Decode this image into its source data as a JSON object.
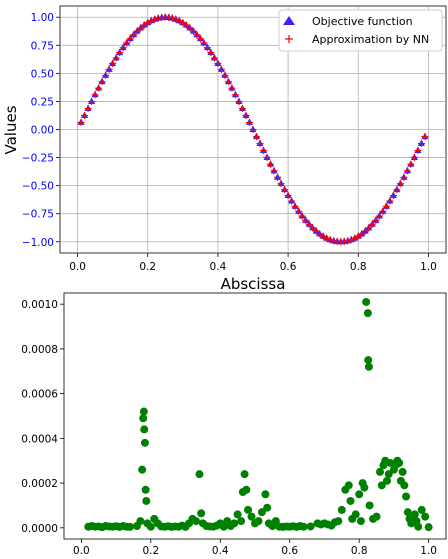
{
  "chart_data": [
    {
      "type": "scatter",
      "xlabel": "Abscissa",
      "ylabel": "Values",
      "xlim": [
        -0.05,
        1.05
      ],
      "ylim": [
        -1.1,
        1.1
      ],
      "grid": true,
      "legend_position": "top-right",
      "x_ticks": [
        0.0,
        0.2,
        0.4,
        0.6,
        0.8,
        1.0
      ],
      "x_tick_labels": [
        "0.0",
        "0.2",
        "0.4",
        "0.6",
        "0.8",
        "1.0"
      ],
      "y_ticks": [
        -1.0,
        -0.75,
        -0.5,
        -0.25,
        0.0,
        0.25,
        0.5,
        0.75,
        1.0
      ],
      "y_tick_labels": [
        "−1.00",
        "−0.75",
        "−0.50",
        "−0.25",
        "0.00",
        "0.25",
        "0.50",
        "0.75",
        "1.00"
      ],
      "y_tick_color": "#0000ff",
      "series": [
        {
          "name": "Objective function",
          "marker": "triangle",
          "color": "#3a22ff"
        },
        {
          "name": "Approximation by NN",
          "marker": "plus",
          "color": "#ff0000"
        }
      ],
      "x": [
        0.01,
        0.02,
        0.03,
        0.04,
        0.05,
        0.06,
        0.07,
        0.08,
        0.09,
        0.1,
        0.11,
        0.12,
        0.13,
        0.14,
        0.15,
        0.16,
        0.17,
        0.18,
        0.19,
        0.2,
        0.21,
        0.22,
        0.23,
        0.24,
        0.25,
        0.26,
        0.27,
        0.28,
        0.29,
        0.3,
        0.31,
        0.32,
        0.33,
        0.34,
        0.35,
        0.36,
        0.37,
        0.38,
        0.39,
        0.4,
        0.41,
        0.42,
        0.43,
        0.44,
        0.45,
        0.46,
        0.47,
        0.48,
        0.49,
        0.5,
        0.51,
        0.52,
        0.53,
        0.54,
        0.55,
        0.56,
        0.57,
        0.58,
        0.59,
        0.6,
        0.61,
        0.62,
        0.63,
        0.64,
        0.65,
        0.66,
        0.67,
        0.68,
        0.69,
        0.7,
        0.71,
        0.72,
        0.73,
        0.74,
        0.75,
        0.76,
        0.77,
        0.78,
        0.79,
        0.8,
        0.81,
        0.82,
        0.83,
        0.84,
        0.85,
        0.86,
        0.87,
        0.88,
        0.89,
        0.9,
        0.91,
        0.92,
        0.93,
        0.94,
        0.95,
        0.96,
        0.97,
        0.98,
        0.99
      ],
      "y": [
        0.063,
        0.125,
        0.187,
        0.249,
        0.309,
        0.368,
        0.426,
        0.482,
        0.536,
        0.588,
        0.637,
        0.685,
        0.729,
        0.771,
        0.809,
        0.844,
        0.876,
        0.905,
        0.93,
        0.951,
        0.969,
        0.982,
        0.992,
        0.998,
        1.0,
        0.998,
        0.992,
        0.982,
        0.969,
        0.951,
        0.93,
        0.905,
        0.876,
        0.844,
        0.809,
        0.771,
        0.729,
        0.685,
        0.637,
        0.588,
        0.536,
        0.482,
        0.426,
        0.368,
        0.309,
        0.249,
        0.187,
        0.125,
        0.063,
        0.0,
        -0.063,
        -0.125,
        -0.187,
        -0.249,
        -0.309,
        -0.368,
        -0.426,
        -0.482,
        -0.536,
        -0.588,
        -0.637,
        -0.685,
        -0.729,
        -0.771,
        -0.809,
        -0.844,
        -0.876,
        -0.905,
        -0.93,
        -0.951,
        -0.969,
        -0.982,
        -0.992,
        -0.998,
        -1.0,
        -0.998,
        -0.992,
        -0.982,
        -0.969,
        -0.951,
        -0.93,
        -0.905,
        -0.876,
        -0.844,
        -0.809,
        -0.771,
        -0.729,
        -0.685,
        -0.637,
        -0.588,
        -0.536,
        -0.482,
        -0.426,
        -0.368,
        -0.309,
        -0.249,
        -0.187,
        -0.125,
        -0.063
      ]
    },
    {
      "type": "scatter",
      "xlim": [
        -0.05,
        1.05
      ],
      "ylim": [
        -5e-05,
        0.00105
      ],
      "grid": false,
      "x_ticks": [
        0.0,
        0.2,
        0.4,
        0.6,
        0.8,
        1.0
      ],
      "x_tick_labels": [
        "0.0",
        "0.2",
        "0.4",
        "0.6",
        "0.8",
        "1.0"
      ],
      "y_ticks": [
        0.0,
        0.0002,
        0.0004,
        0.0006,
        0.0008,
        0.001
      ],
      "y_tick_labels": [
        "0.0000",
        "0.0002",
        "0.0004",
        "0.0006",
        "0.0008",
        "0.0010"
      ],
      "color": "#008000",
      "points": [
        [
          0.02,
          5e-06
        ],
        [
          0.03,
          8e-06
        ],
        [
          0.04,
          5e-06
        ],
        [
          0.05,
          6e-06
        ],
        [
          0.06,
          3e-06
        ],
        [
          0.07,
          8e-06
        ],
        [
          0.08,
          6e-06
        ],
        [
          0.09,
          5e-06
        ],
        [
          0.1,
          7e-06
        ],
        [
          0.11,
          4e-06
        ],
        [
          0.12,
          8e-06
        ],
        [
          0.13,
          5e-06
        ],
        [
          0.14,
          4e-06
        ],
        [
          0.16,
          8e-06
        ],
        [
          0.17,
          3e-05
        ],
        [
          0.175,
          0.00026
        ],
        [
          0.178,
          0.00049
        ],
        [
          0.18,
          0.00052
        ],
        [
          0.181,
          0.00044
        ],
        [
          0.183,
          0.00038
        ],
        [
          0.185,
          0.00017
        ],
        [
          0.187,
          0.00012
        ],
        [
          0.19,
          2e-05
        ],
        [
          0.2,
          5e-06
        ],
        [
          0.21,
          4e-05
        ],
        [
          0.22,
          2e-05
        ],
        [
          0.23,
          6e-06
        ],
        [
          0.24,
          5e-06
        ],
        [
          0.25,
          7e-06
        ],
        [
          0.26,
          4e-06
        ],
        [
          0.27,
          6e-06
        ],
        [
          0.28,
          5e-06
        ],
        [
          0.29,
          1e-05
        ],
        [
          0.3,
          4e-06
        ],
        [
          0.31,
          2e-05
        ],
        [
          0.32,
          4e-05
        ],
        [
          0.33,
          3e-05
        ],
        [
          0.34,
          0.00024
        ],
        [
          0.345,
          6.5e-05
        ],
        [
          0.35,
          2e-05
        ],
        [
          0.36,
          8e-06
        ],
        [
          0.37,
          6e-06
        ],
        [
          0.38,
          5e-06
        ],
        [
          0.39,
          1e-05
        ],
        [
          0.4,
          2e-05
        ],
        [
          0.41,
          5e-06
        ],
        [
          0.42,
          3e-05
        ],
        [
          0.43,
          8e-06
        ],
        [
          0.44,
          2e-05
        ],
        [
          0.45,
          6e-05
        ],
        [
          0.46,
          3e-05
        ],
        [
          0.465,
          0.00016
        ],
        [
          0.47,
          0.00024
        ],
        [
          0.475,
          0.00017
        ],
        [
          0.48,
          8e-05
        ],
        [
          0.49,
          5e-05
        ],
        [
          0.5,
          2e-05
        ],
        [
          0.51,
          3e-05
        ],
        [
          0.52,
          7e-05
        ],
        [
          0.53,
          0.00015
        ],
        [
          0.535,
          9e-05
        ],
        [
          0.54,
          2e-05
        ],
        [
          0.55,
          8e-06
        ],
        [
          0.56,
          3e-05
        ],
        [
          0.57,
          5e-06
        ],
        [
          0.58,
          4e-06
        ],
        [
          0.59,
          6e-06
        ],
        [
          0.6,
          5e-06
        ],
        [
          0.61,
          7e-06
        ],
        [
          0.62,
          4e-06
        ],
        [
          0.63,
          8e-06
        ],
        [
          0.64,
          5e-06
        ],
        [
          0.66,
          6e-06
        ],
        [
          0.68,
          2e-05
        ],
        [
          0.69,
          1.5e-05
        ],
        [
          0.7,
          2e-05
        ],
        [
          0.71,
          1.5e-05
        ],
        [
          0.72,
          1e-05
        ],
        [
          0.73,
          2.5e-05
        ],
        [
          0.74,
          3e-05
        ],
        [
          0.75,
          8e-05
        ],
        [
          0.76,
          0.00017
        ],
        [
          0.77,
          0.00019
        ],
        [
          0.775,
          0.00012
        ],
        [
          0.78,
          4e-05
        ],
        [
          0.79,
          6e-05
        ],
        [
          0.8,
          0.00015
        ],
        [
          0.805,
          3e-05
        ],
        [
          0.81,
          0.0002
        ],
        [
          0.815,
          0.00018
        ],
        [
          0.82,
          0.00101
        ],
        [
          0.825,
          0.00096
        ],
        [
          0.826,
          0.00075
        ],
        [
          0.828,
          0.00072
        ],
        [
          0.83,
          0.0001
        ],
        [
          0.84,
          4e-05
        ],
        [
          0.85,
          5e-05
        ],
        [
          0.86,
          0.00025
        ],
        [
          0.865,
          0.00019
        ],
        [
          0.87,
          0.00028
        ],
        [
          0.875,
          0.0003
        ],
        [
          0.88,
          0.00021
        ],
        [
          0.885,
          0.00024
        ],
        [
          0.89,
          0.00029
        ],
        [
          0.9,
          0.00026
        ],
        [
          0.905,
          0.00028
        ],
        [
          0.91,
          0.0003
        ],
        [
          0.915,
          0.00029
        ],
        [
          0.92,
          0.00021
        ],
        [
          0.925,
          0.00025
        ],
        [
          0.93,
          0.00019
        ],
        [
          0.935,
          0.00014
        ],
        [
          0.94,
          7e-05
        ],
        [
          0.945,
          4e-05
        ],
        [
          0.95,
          2e-05
        ],
        [
          0.96,
          6e-05
        ],
        [
          0.965,
          3e-05
        ],
        [
          0.97,
          5e-06
        ],
        [
          0.98,
          8e-05
        ],
        [
          0.99,
          5e-05
        ],
        [
          1.0,
          3e-06
        ]
      ]
    }
  ]
}
